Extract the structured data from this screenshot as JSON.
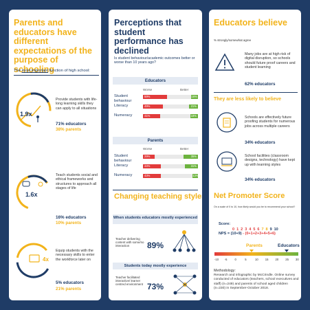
{
  "col1": {
    "title": "Parents and educators have different expectations of the purpose of schooling",
    "subtitle_pre": "The ",
    "subtitle_em": "most important",
    "subtitle_post": " function of high school:",
    "items": [
      {
        "mult": "1.9x",
        "desc": "Provide students with life-long learning skills they can apply to all situations",
        "educators": "71%  educators",
        "parents": "38%  parents"
      },
      {
        "mult": "1.6x",
        "desc": "Teach students social and ethical frameworks and structures to approach all stages of life",
        "educators": "16%  educators",
        "parents": "10%  parents"
      },
      {
        "mult": "4x",
        "desc": "Equip students with the necessary skills to enter the workforce later on",
        "educators": "5%  educators",
        "parents": "21%  parents"
      }
    ]
  },
  "col2": {
    "title": "Perceptions that student performance has declined",
    "question": "Is student behaviour/academic outcomes better or worse than 10 years ago?",
    "worse_label": "Worse",
    "better_label": "Better",
    "groups": [
      {
        "name": "Educators",
        "rows": [
          {
            "label": "Student behaviour",
            "worse": 59,
            "worse_text": "59%",
            "better": 16,
            "better_text": "16%"
          },
          {
            "label": "Literacy",
            "worse": 49,
            "worse_text": "49%",
            "better": 21,
            "better_text": "21%"
          },
          {
            "label": "Numeracy",
            "worse": 41,
            "worse_text": "41%",
            "better": 18,
            "better_text": "18%"
          }
        ]
      },
      {
        "name": "Parents",
        "rows": [
          {
            "label": "Student behaviour",
            "worse": 29,
            "worse_text": "29%",
            "better": 35,
            "better_text": "35%"
          },
          {
            "label": "Literacy",
            "worse": 44,
            "worse_text": "44%",
            "better": 31,
            "better_text": "31%"
          },
          {
            "label": "Numeracy",
            "worse": 43,
            "worse_text": "43%",
            "better": 13,
            "better_text": "13%"
          }
        ]
      }
    ],
    "changing_title": "Changing teaching styles",
    "then_header": "When students educators mostly experienced",
    "then_desc": "Teacher delivering content with some/no interaction",
    "then_pct": "89%",
    "now_header": "Students today mostly experience",
    "now_desc": "Teacher facilitated interactive/ learner centred environment",
    "now_pct": "73%"
  },
  "col3": {
    "title": "Educators believe",
    "note": "% strongly/somewhat agree",
    "belief1_text": "Many jobs are at high risk of digital disruption, so schools should future proof careers and student learning",
    "belief1_pct": "62%  educators",
    "less_likely": "They are less likely to believe",
    "belief2_text": "Schools are effectively future proofing students for numerous jobs across multiple careers",
    "belief2_pct": "34%  educators",
    "belief3_text": "School facilities (classroom designs, technology) have kept up with learning styles",
    "belief3_pct": "34%  educators",
    "nps_title": "Net Promoter Score",
    "nps_question": "On a scale of 0 to 10, how likely would you be to recommend your school?",
    "score_label": "Score:",
    "scores": [
      "0",
      "1",
      "2",
      "3",
      "4",
      "5",
      "6",
      "7",
      "8",
      "9",
      "10"
    ],
    "nps_formula_left": "NPS = (10+9)",
    "nps_formula_right": " - (0+1+2+3+4+5+6)",
    "parents_label": "Parents",
    "educators_label": "Educators",
    "scale_ticks": [
      "-10",
      "-5",
      "0",
      "5",
      "10",
      "15",
      "20",
      "25",
      "30"
    ],
    "methodology_title": "Methodology:",
    "methodology_text": "Research and infographic by McCrindle. Online survey conducted of educators (teachers, school executives and staff) (n=249) and parents of school aged children (n=230) in September-October 2018."
  },
  "colors": {
    "navy": "#1f3c66",
    "yellow": "#f2b31b",
    "red": "#e23b3b",
    "green": "#6cb33e"
  }
}
